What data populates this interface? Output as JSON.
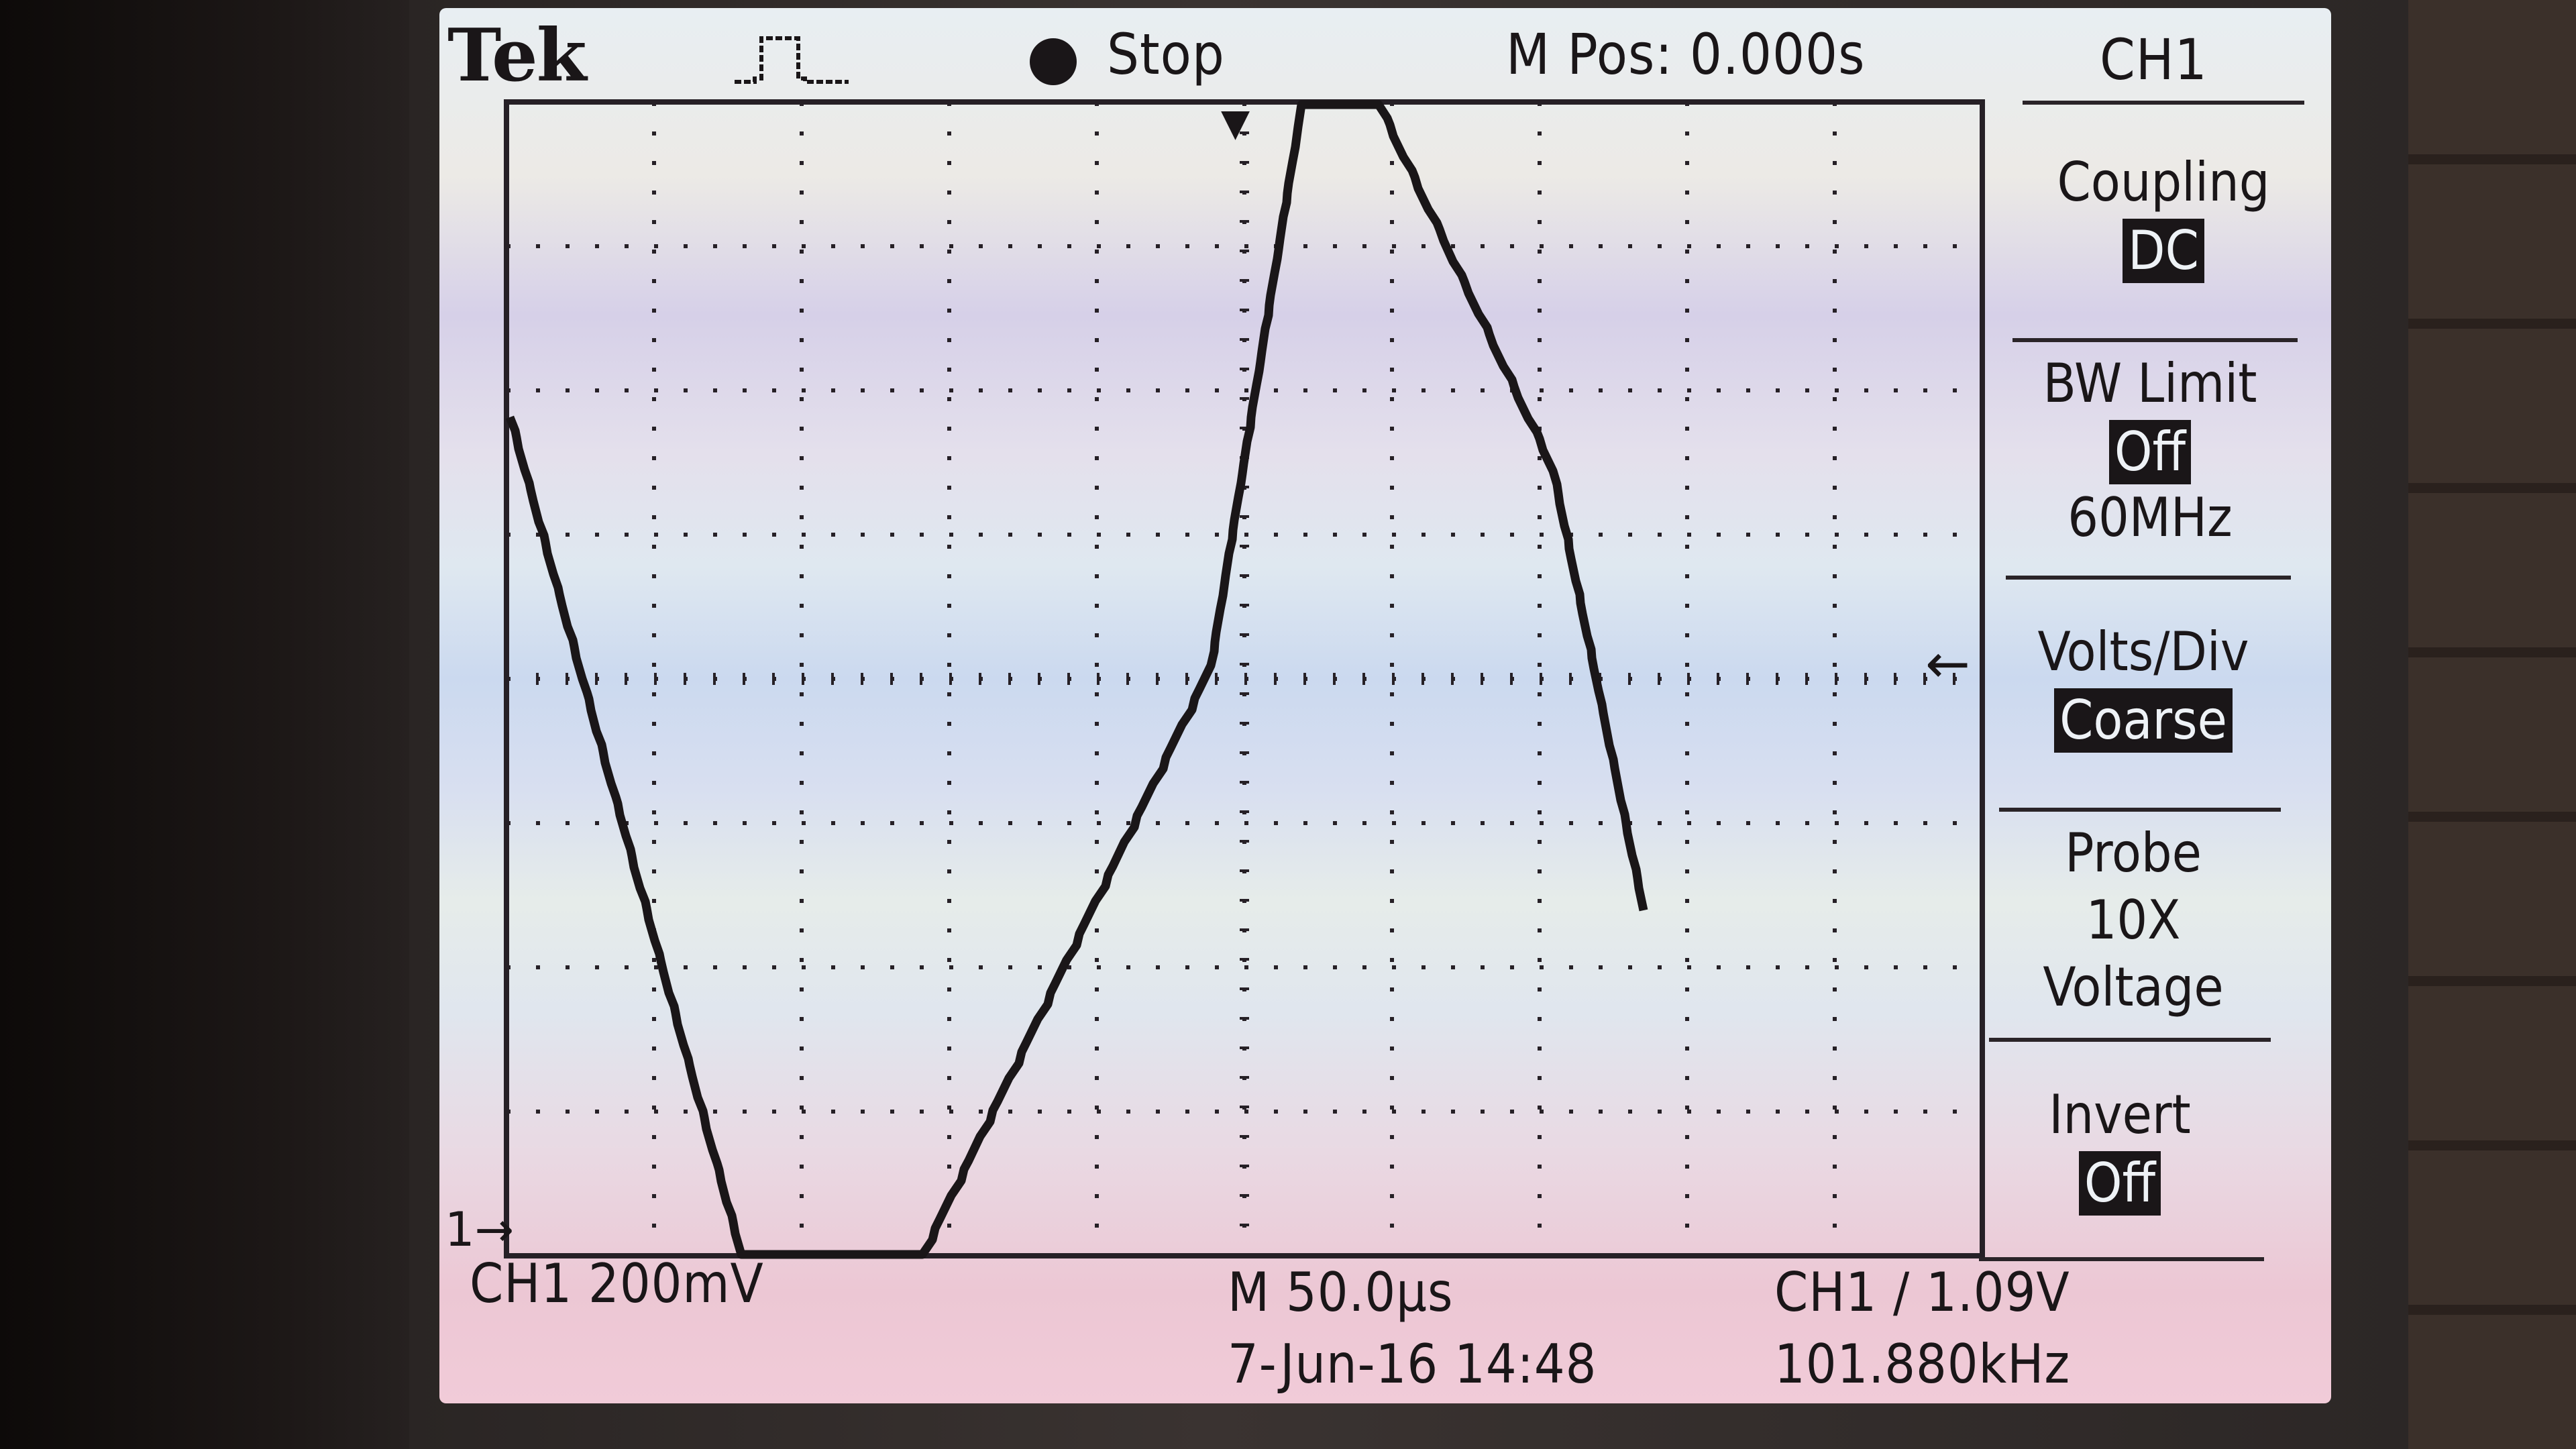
{
  "header": {
    "brand": "Tek",
    "trigger_icon": "trigger-edge-icon",
    "run_status": "Stop",
    "m_pos": "M Pos: 0.000s",
    "menu_title": "CH1"
  },
  "menu": {
    "coupling": {
      "label": "Coupling",
      "value": "DC"
    },
    "bw_limit": {
      "label": "BW Limit",
      "value": "Off",
      "sub": "60MHz"
    },
    "volts_div": {
      "label": "Volts/Div",
      "value": "Coarse"
    },
    "probe": {
      "label": "Probe",
      "value1": "10X",
      "value2": "Voltage"
    },
    "invert": {
      "label": "Invert",
      "value": "Off"
    }
  },
  "footer": {
    "ch1_scale": "CH1  200mV",
    "timebase": "M 50.0μs",
    "trigger": "CH1 ∕ 1.09V",
    "date": "7-Jun-16 14:48",
    "frequency": "101.880kHz"
  },
  "markers": {
    "ground": "1→",
    "trigger_pos": "▼",
    "trigger_level": "←"
  },
  "colors": {
    "trace": "#1a1618",
    "highlight_bg": "#1a1618",
    "highlight_fg": "#eef2f6"
  }
}
